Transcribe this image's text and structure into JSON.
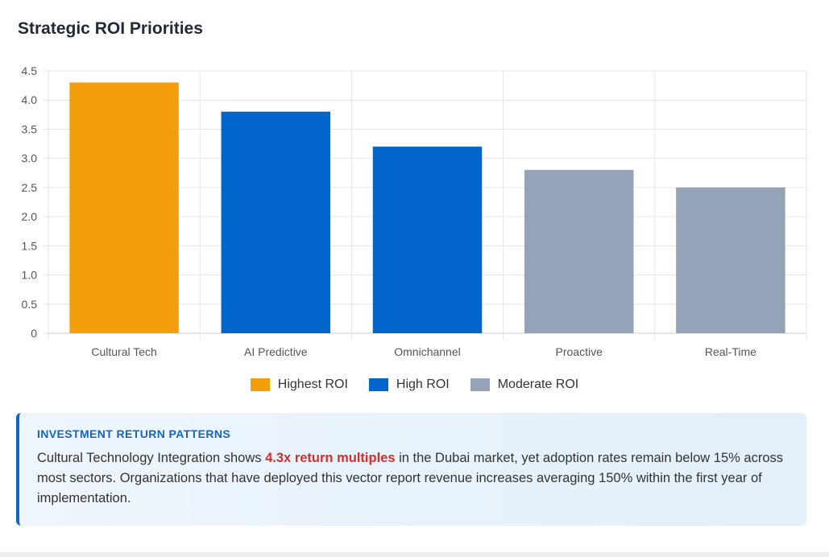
{
  "title": "Strategic ROI Priorities",
  "chart_data": {
    "type": "bar",
    "categories": [
      "Cultural Tech",
      "AI Predictive",
      "Omnichannel",
      "Proactive",
      "Real-Time"
    ],
    "values": [
      4.3,
      3.8,
      3.2,
      2.8,
      2.5
    ],
    "value_groups": [
      "Highest ROI",
      "High ROI",
      "High ROI",
      "Moderate ROI",
      "Moderate ROI"
    ],
    "ylim": [
      0,
      4.5
    ],
    "yticks": [
      "0",
      "0.5",
      "1.0",
      "1.5",
      "2.0",
      "2.5",
      "3.0",
      "3.5",
      "4.0",
      "4.5"
    ],
    "grid": true,
    "legend_position": "bottom",
    "legend": [
      {
        "label": "Highest ROI",
        "color": "#f59e0b"
      },
      {
        "label": "High ROI",
        "color": "#0066cc"
      },
      {
        "label": "Moderate ROI",
        "color": "#94a3b8"
      }
    ]
  },
  "insight": {
    "heading": "INVESTMENT RETURN PATTERNS",
    "text_before": "Cultural Technology Integration shows ",
    "highlight": "4.3x return multiples",
    "text_after": " in the Dubai market, yet adoption rates remain below 15% across most sectors. Organizations that have deployed this vector report revenue increases averaging 150% within the first year of implementation."
  }
}
